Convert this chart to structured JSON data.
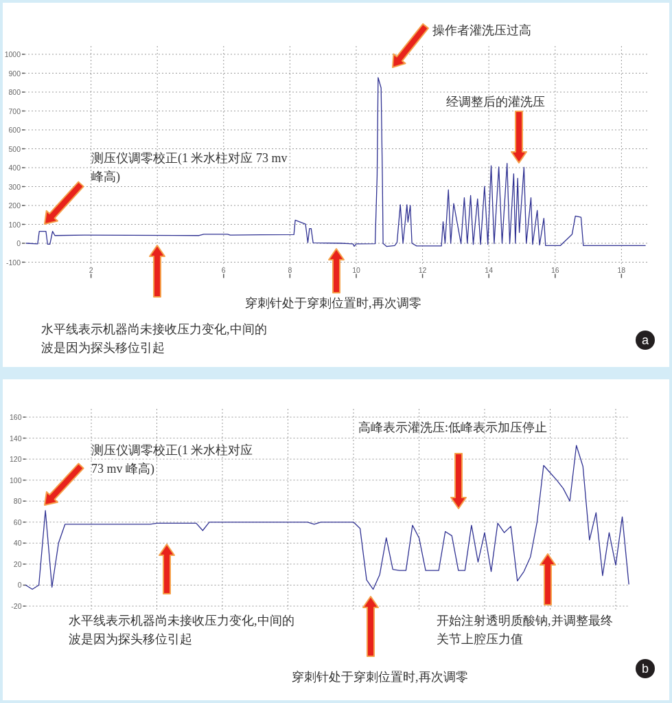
{
  "chart_data": [
    {
      "type": "line",
      "xlim": [
        0,
        18.8
      ],
      "ylim": [
        -100,
        1000
      ],
      "xticks": [
        2,
        {
          "value": 4,
          "label": null
        },
        6,
        8,
        10,
        12,
        14,
        16,
        18
      ],
      "yticks": [
        -100,
        0,
        100,
        200,
        300,
        400,
        500,
        600,
        700,
        800,
        900,
        1000
      ],
      "grid": true,
      "series": [
        {
          "color": "#2f3192",
          "x": [
            0.05,
            0.39,
            0.44,
            0.64,
            0.69,
            0.76,
            0.84,
            0.91,
            1.8,
            5.26,
            5.4,
            6.12,
            6.2,
            7.12,
            8.12,
            8.16,
            8.47,
            8.54,
            8.59,
            8.64,
            8.7,
            9.54,
            9.9,
            9.94,
            10.0,
            10.02,
            10.57,
            10.63,
            10.66,
            10.75,
            10.79,
            10.81,
            10.92,
            11.16,
            11.23,
            11.33,
            11.41,
            11.53,
            11.56,
            11.63,
            11.68,
            11.82,
            12.57,
            12.62,
            12.68,
            12.78,
            12.85,
            12.94,
            13.16,
            13.26,
            13.35,
            13.45,
            13.53,
            13.66,
            13.75,
            13.87,
            13.97,
            14.07,
            14.16,
            14.3,
            14.4,
            14.55,
            14.63,
            14.75,
            14.8,
            14.87,
            14.92,
            15.06,
            15.13,
            15.27,
            15.32,
            15.46,
            15.53,
            15.66,
            15.71,
            16.16,
            16.51,
            16.61,
            16.78,
            16.85,
            18.72
          ],
          "values": [
            0,
            -3,
            63,
            63,
            -5,
            -5,
            63,
            41,
            43,
            41,
            48,
            48,
            43,
            45,
            46,
            122,
            101,
            3,
            78,
            78,
            2,
            0,
            -3,
            -16,
            -3,
            -3,
            -2,
            356,
            877,
            822,
            340,
            -1,
            -17,
            -12,
            4,
            204,
            0,
            204,
            112,
            200,
            0,
            -14,
            -14,
            114,
            0,
            283,
            0,
            210,
            -2,
            241,
            0,
            253,
            -6,
            235,
            -6,
            301,
            -6,
            410,
            -2,
            404,
            0,
            423,
            -2,
            368,
            0,
            344,
            57,
            402,
            0,
            241,
            -6,
            174,
            -9,
            132,
            -12,
            -12,
            47,
            144,
            138,
            -12,
            -12
          ]
        }
      ],
      "annotations": [
        "测压仪调零校正(1 米水柱对应 73 mv 峰高)",
        "操作者灌洗压过高",
        "经调整后的灌洗压",
        "穿刺针处于穿刺位置时,再次调零",
        "水平线表示机器尚未接收压力变化,中间的波是因为探头移位引起",
        "a"
      ]
    },
    {
      "type": "line",
      "ylim": [
        -20,
        160
      ],
      "categories": [
        null,
        null,
        null,
        null,
        null,
        null,
        null,
        null,
        null,
        null,
        null,
        null,
        null,
        null,
        null,
        null,
        null,
        null,
        null,
        null,
        null,
        null,
        null,
        null,
        null,
        null,
        null,
        null,
        null,
        null,
        null,
        null,
        null,
        null,
        null,
        null,
        null,
        null,
        null,
        null,
        null,
        null,
        null,
        null,
        null,
        null,
        null,
        null,
        null,
        null,
        null,
        null,
        null,
        null,
        null,
        null,
        null,
        null,
        null,
        null,
        null,
        null,
        null,
        null,
        null,
        null,
        null,
        null,
        null,
        null,
        null,
        null,
        null,
        null,
        null,
        null,
        null,
        null,
        null,
        null,
        null,
        null,
        null,
        null,
        null,
        null,
        null,
        null,
        null,
        null,
        null,
        null,
        null
      ],
      "yticks": [
        -20,
        0,
        20,
        40,
        60,
        80,
        100,
        120,
        140,
        160
      ],
      "grid": true,
      "tick_labels": "y",
      "series": [
        {
          "color": "#2f3192",
          "values": [
            0,
            -4,
            0,
            71,
            -2,
            40,
            58,
            58,
            58,
            58,
            58,
            58,
            58,
            58,
            58,
            58,
            58,
            58,
            58,
            58,
            59,
            59,
            59,
            59,
            59,
            59,
            59,
            52,
            60,
            60,
            60,
            60,
            60,
            60,
            60,
            60,
            60,
            60,
            60,
            60,
            60,
            60,
            60,
            60,
            58,
            60,
            60,
            60,
            60,
            60,
            60,
            54,
            5,
            -4,
            10,
            45,
            15,
            14,
            14,
            57,
            45,
            14,
            14,
            14,
            51,
            47,
            14,
            14,
            57,
            22,
            50,
            13,
            59,
            50,
            56,
            4,
            13,
            27,
            60,
            114,
            107,
            100,
            92,
            80,
            133,
            113,
            43,
            69,
            9,
            50,
            19,
            65,
            1
          ]
        }
      ],
      "annotations": [
        "测压仪调零校正(1 米水柱对应 73 mv 峰高)",
        "高峰表示灌洗压:低峰表示加压停止",
        "水平线表示机器尚未接收压力变化,中间的波是因为探头移位引起",
        "穿刺针处于穿刺位置时,再次调零",
        "开始注射透明质酸钠,并调整最终关节上腔压力值",
        "b"
      ]
    }
  ]
}
